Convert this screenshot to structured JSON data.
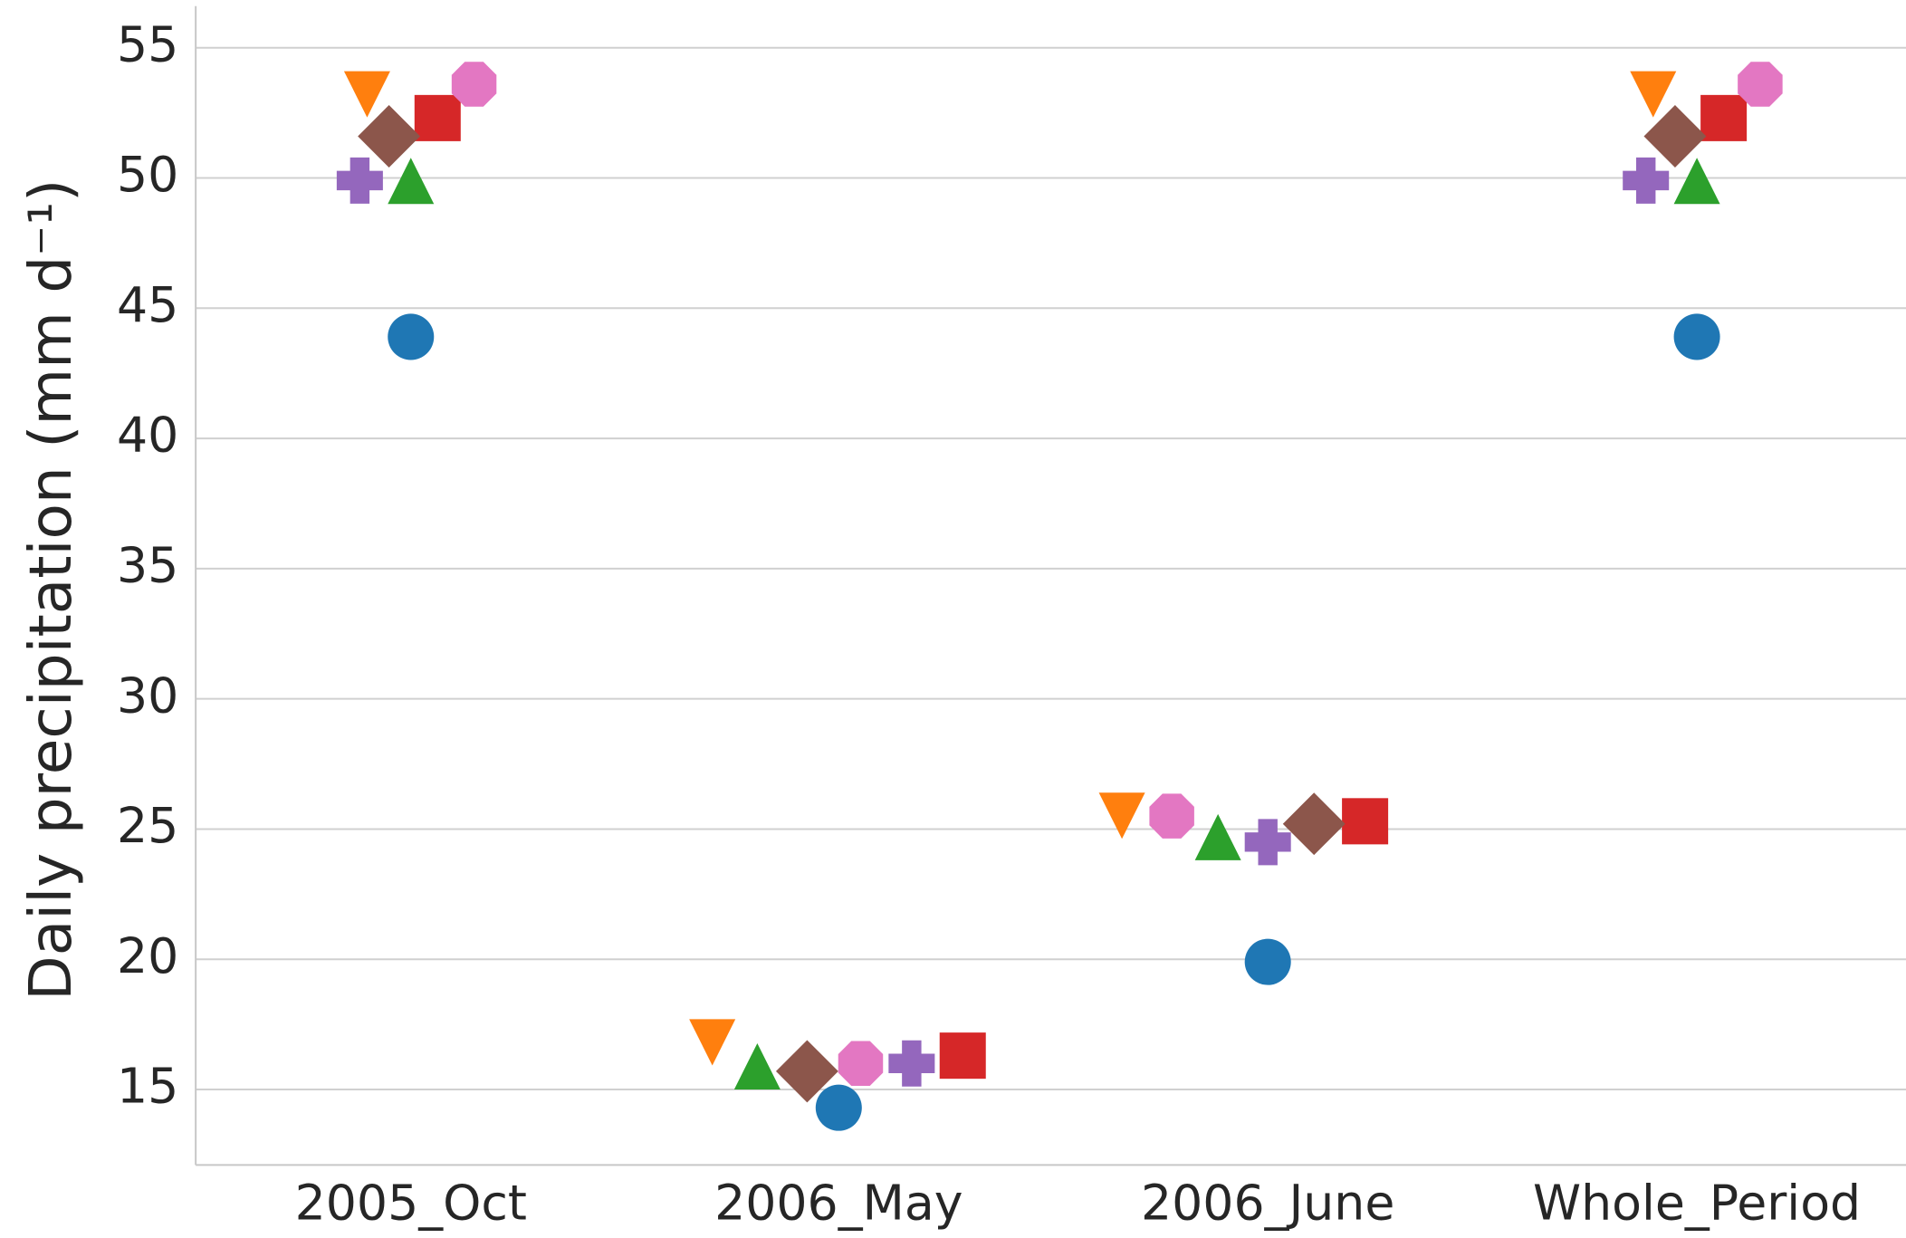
{
  "chart_data": {
    "type": "scatter",
    "y_label": "Daily precipitation (mm d⁻¹)",
    "categories": [
      "2005_Oct",
      "2006_May",
      "2006_June",
      "Whole_Period"
    ],
    "ylim": [
      12.1,
      56.6
    ],
    "yticks": [
      15,
      20,
      25,
      30,
      35,
      40,
      45,
      50,
      55
    ],
    "grid": true,
    "series": [
      {
        "color": "#1f77b4",
        "marker": "circle",
        "values": [
          43.9,
          14.3,
          19.9,
          43.9
        ]
      },
      {
        "color": "#ff7f0e",
        "marker": "triangle-down",
        "values": [
          53.3,
          16.9,
          25.6,
          53.3
        ]
      },
      {
        "color": "#2ca02c",
        "marker": "triangle-up",
        "values": [
          49.8,
          15.8,
          24.6,
          49.8
        ]
      },
      {
        "color": "#d62728",
        "marker": "square",
        "values": [
          52.3,
          16.3,
          25.3,
          52.3
        ]
      },
      {
        "color": "#9467bd",
        "marker": "plus",
        "values": [
          49.9,
          16.0,
          24.5,
          49.9
        ]
      },
      {
        "color": "#8c564b",
        "marker": "diamond",
        "values": [
          51.6,
          15.7,
          25.2,
          51.6
        ]
      },
      {
        "color": "#e377c2",
        "marker": "octagon",
        "values": [
          53.6,
          16.0,
          25.5,
          53.6
        ]
      }
    ]
  }
}
